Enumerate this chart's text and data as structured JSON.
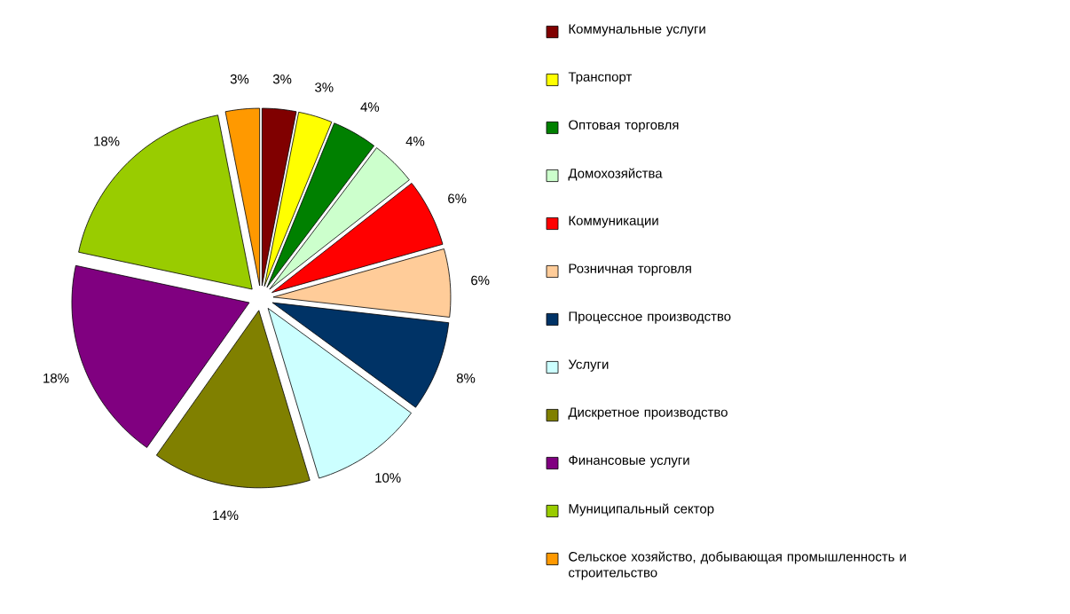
{
  "chart_data": {
    "type": "pie",
    "categories": [
      "Коммунальные услуги",
      "Транспорт",
      "Оптовая торговля",
      "Домохозяйства",
      "Коммуникации",
      "Розничная торговля",
      "Процессное производство",
      "Услуги",
      "Дискретное производство",
      "Финансовые услуги",
      "Муниципальный сектор",
      "Сельское хозяйство, добывающая промышленность и строительство"
    ],
    "values": [
      3,
      3,
      4,
      4,
      6,
      6,
      8,
      10,
      14,
      18,
      18,
      3
    ],
    "value_labels": [
      "3%",
      "3%",
      "4%",
      "4%",
      "6%",
      "6%",
      "8%",
      "10%",
      "14%",
      "18%",
      "18%",
      "3%"
    ],
    "colors": [
      "#800000",
      "#ffff00",
      "#008000",
      "#ccffcc",
      "#ff0000",
      "#ffcc99",
      "#003366",
      "#ccffff",
      "#808000",
      "#800080",
      "#99cc00",
      "#ff9900"
    ],
    "legend": "right"
  }
}
